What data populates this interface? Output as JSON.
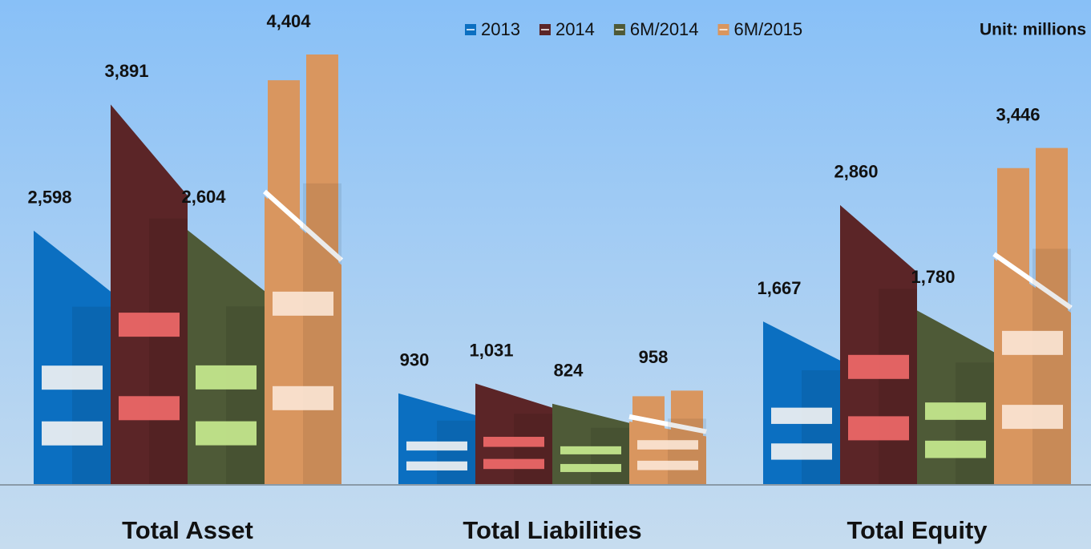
{
  "chart_data": {
    "type": "bar",
    "unit_note": "Unit: millions",
    "categories": [
      "Total Asset",
      "Total Liabilities",
      "Total Equity"
    ],
    "series": [
      {
        "name": "2013",
        "color": "#0b6fc1",
        "values": [
          2598,
          930,
          1667
        ],
        "value_labels": [
          "2,598",
          "930",
          "1,667"
        ]
      },
      {
        "name": "2014",
        "color": "#5b2527",
        "values": [
          3891,
          1031,
          2860
        ],
        "value_labels": [
          "3,891",
          "1,031",
          "2,860"
        ]
      },
      {
        "name": "6M/2014",
        "color": "#4e5a37",
        "values": [
          2604,
          824,
          1780
        ],
        "value_labels": [
          "2,604",
          "824",
          "1,780"
        ]
      },
      {
        "name": "6M/2015",
        "color": "#d9965f",
        "values": [
          4404,
          958,
          3446
        ],
        "value_labels": [
          "4,404",
          "958",
          "3,446"
        ]
      }
    ]
  }
}
